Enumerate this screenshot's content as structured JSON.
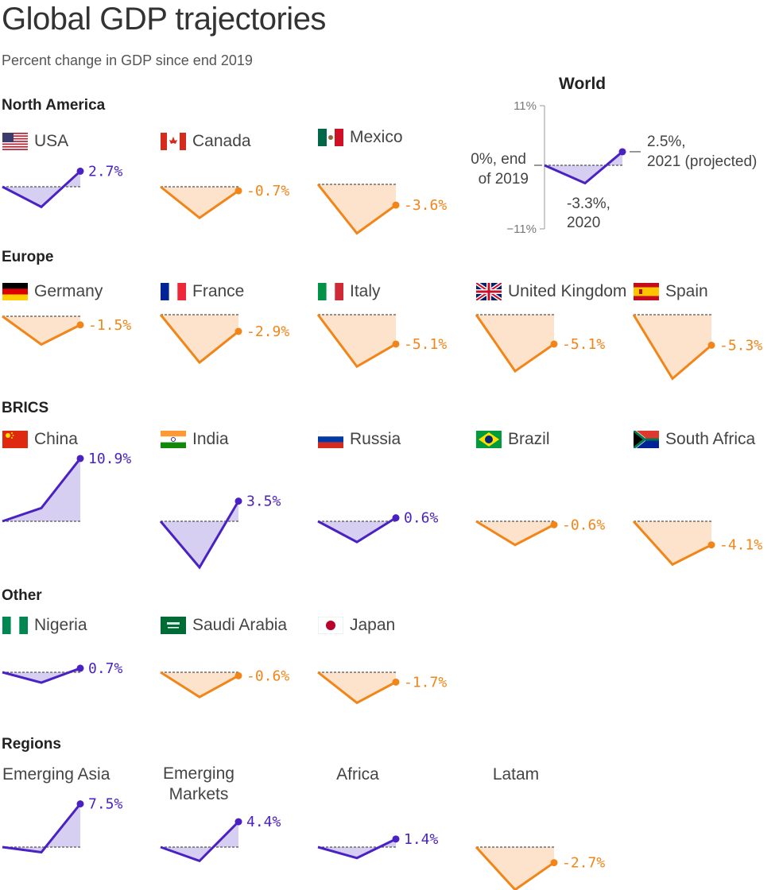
{
  "title": "Global GDP trajectories",
  "subtitle": "Percent change in GDP since end 2019",
  "colors": {
    "positive_line": "#4a22c4",
    "positive_fill": "#d6cff2",
    "negative_line": "#f28518",
    "negative_fill": "#fde2cc",
    "baseline": "#555555"
  },
  "groups": [
    {
      "title": "North America"
    },
    {
      "title": "Europe"
    },
    {
      "title": "BRICS"
    },
    {
      "title": "Other"
    },
    {
      "title": "Regions"
    }
  ],
  "chart_data": {
    "type": "line",
    "x": [
      "end 2019",
      "2020",
      "2021 (projected)"
    ],
    "series": [
      {
        "name": "USA",
        "group": "North America",
        "flag": "usa-flag",
        "values": [
          0,
          -3.5,
          2.7
        ],
        "label": "2.7%"
      },
      {
        "name": "Canada",
        "group": "North America",
        "flag": "canada-flag",
        "values": [
          0,
          -5.4,
          -0.7
        ],
        "label": "-0.7%"
      },
      {
        "name": "Mexico",
        "group": "North America",
        "flag": "mexico-flag",
        "values": [
          0,
          -8.5,
          -3.6
        ],
        "label": "-3.6%"
      },
      {
        "name": "Germany",
        "group": "Europe",
        "flag": "germany-flag",
        "values": [
          0,
          -4.9,
          -1.5
        ],
        "label": "-1.5%"
      },
      {
        "name": "France",
        "group": "Europe",
        "flag": "france-flag",
        "values": [
          0,
          -8.3,
          -2.9
        ],
        "label": "-2.9%"
      },
      {
        "name": "Italy",
        "group": "Europe",
        "flag": "italy-flag",
        "values": [
          0,
          -9.0,
          -5.1
        ],
        "label": "-5.1%"
      },
      {
        "name": "United Kingdom",
        "group": "Europe",
        "flag": "uk-flag",
        "values": [
          0,
          -9.8,
          -5.1
        ],
        "label": "-5.1%"
      },
      {
        "name": "Spain",
        "group": "Europe",
        "flag": "spain-flag",
        "values": [
          0,
          -11.1,
          -5.3
        ],
        "label": "-5.3%"
      },
      {
        "name": "China",
        "group": "BRICS",
        "flag": "china-flag",
        "values": [
          0,
          2.3,
          10.9
        ],
        "label": "10.9%"
      },
      {
        "name": "India",
        "group": "BRICS",
        "flag": "india-flag",
        "values": [
          0,
          -8.0,
          3.5
        ],
        "label": "3.5%"
      },
      {
        "name": "Russia",
        "group": "BRICS",
        "flag": "russia-flag",
        "values": [
          0,
          -3.6,
          0.6
        ],
        "label": "0.6%"
      },
      {
        "name": "Brazil",
        "group": "BRICS",
        "flag": "brazil-flag",
        "values": [
          0,
          -4.1,
          -0.6
        ],
        "label": "-0.6%"
      },
      {
        "name": "South Africa",
        "group": "BRICS",
        "flag": "south-africa-flag",
        "values": [
          0,
          -7.5,
          -4.1
        ],
        "label": "-4.1%"
      },
      {
        "name": "Nigeria",
        "group": "Other",
        "flag": "nigeria-flag",
        "values": [
          0,
          -1.8,
          0.7
        ],
        "label": "0.7%"
      },
      {
        "name": "Saudi Arabia",
        "group": "Other",
        "flag": "saudi-arabia-flag",
        "values": [
          0,
          -4.3,
          -0.6
        ],
        "label": "-0.6%"
      },
      {
        "name": "Japan",
        "group": "Other",
        "flag": "japan-flag",
        "values": [
          0,
          -5.3,
          -1.7
        ],
        "label": "-1.7%"
      },
      {
        "name": "Emerging Asia",
        "group": "Regions",
        "flag": "",
        "values": [
          0,
          -0.9,
          7.5
        ],
        "label": "7.5%"
      },
      {
        "name": "Emerging Markets",
        "group": "Regions",
        "flag": "",
        "values": [
          0,
          -2.4,
          4.4
        ],
        "label": "4.4%"
      },
      {
        "name": "Africa",
        "group": "Regions",
        "flag": "",
        "values": [
          0,
          -1.9,
          1.4
        ],
        "label": "1.4%"
      },
      {
        "name": "Latam",
        "group": "Regions",
        "flag": "",
        "values": [
          0,
          -7.4,
          -2.7
        ],
        "label": "-2.7%"
      }
    ],
    "world": {
      "title": "World",
      "values": [
        0,
        -3.3,
        2.5
      ],
      "ylim": [
        -11,
        11
      ],
      "ticks": [
        "11%",
        "−11%"
      ],
      "annotations": {
        "start": [
          "0%, end",
          "of 2019"
        ],
        "mid": [
          "-3.3%,",
          "2020"
        ],
        "end": [
          "2.5%,",
          "2021 (projected)"
        ]
      }
    }
  }
}
